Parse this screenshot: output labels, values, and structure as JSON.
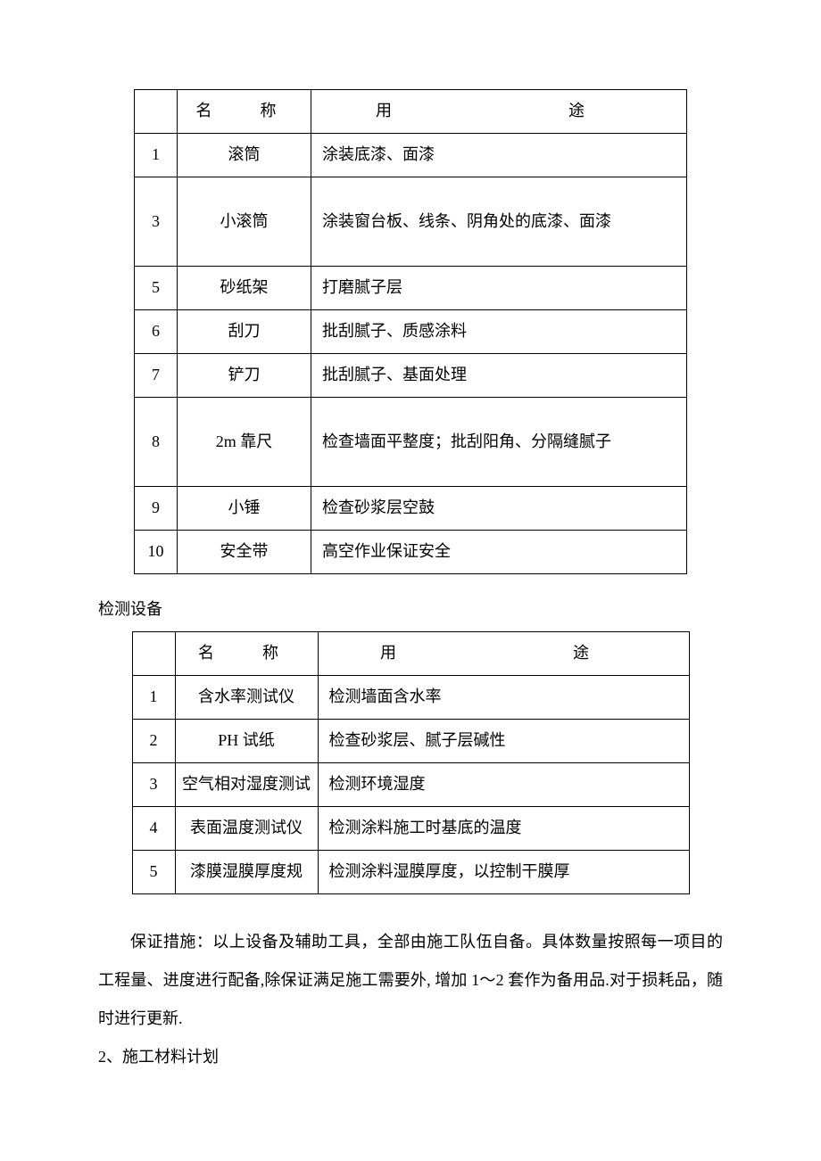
{
  "table1": {
    "columns": {
      "name": "名　称",
      "use": "用　　途"
    },
    "rows": [
      {
        "num": "1",
        "name": "滚筒",
        "use": "涂装底漆、面漆",
        "tall": false
      },
      {
        "num": "3",
        "name": "小滚筒",
        "use": "涂装窗台板、线条、阴角处的底漆、面漆",
        "tall": true
      },
      {
        "num": "5",
        "name": "砂纸架",
        "use": "打磨腻子层",
        "tall": false
      },
      {
        "num": "6",
        "name": "刮刀",
        "use": "批刮腻子、质感涂料",
        "tall": false
      },
      {
        "num": "7",
        "name": "铲刀",
        "use": "批刮腻子、基面处理",
        "tall": false
      },
      {
        "num": "8",
        "name": "2m 靠尺",
        "use": "检查墙面平整度；批刮阳角、分隔缝腻子",
        "tall": true
      },
      {
        "num": "9",
        "name": "小锤",
        "use": "检查砂浆层空鼓",
        "tall": false
      },
      {
        "num": "10",
        "name": "安全带",
        "use": "高空作业保证安全",
        "tall": false
      }
    ],
    "col_widths": {
      "num": 48,
      "name": 150,
      "use": 422
    },
    "border_color": "#000000",
    "font_size": 18
  },
  "section_label": "检测设备",
  "table2": {
    "columns": {
      "name": "名　称",
      "use": "用　　途"
    },
    "rows": [
      {
        "num": "1",
        "name": "含水率测试仪",
        "use": "检测墙面含水率"
      },
      {
        "num": "2",
        "name": "PH 试纸",
        "use": "检查砂浆层、腻子层碱性"
      },
      {
        "num": "3",
        "name": "空气相对湿度测试",
        "use": "检测环境湿度"
      },
      {
        "num": "4",
        "name": "表面温度测试仪",
        "use": "检测涂料施工时基底的温度"
      },
      {
        "num": "5",
        "name": "漆膜湿膜厚度规",
        "use": "检测涂料湿膜厚度，以控制干膜厚"
      }
    ],
    "col_widths": {
      "num": 48,
      "name": 160,
      "use": 417
    },
    "border_color": "#000000",
    "font_size": 18
  },
  "paragraph1": "保证措施：以上设备及辅助工具，全部由施工队伍自备。具体数量按照每一项目的工程量、进度进行配备,除保证满足施工需要外, 增加 1～2 套作为备用品.对于损耗品，随时进行更新.",
  "paragraph2": "2、施工材料计划",
  "styling": {
    "background_color": "#ffffff",
    "text_color": "#000000",
    "font_family": "SimSun",
    "body_font_size": 18,
    "line_height": 2.2
  }
}
